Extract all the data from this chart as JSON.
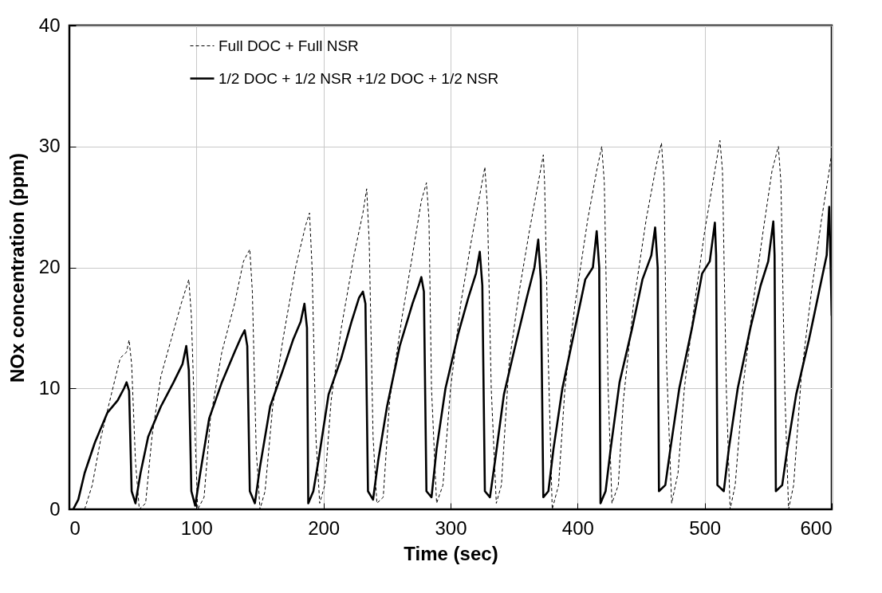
{
  "chart_data": {
    "type": "line",
    "xlabel": "Time (sec)",
    "ylabel": "NOx concentration (ppm)",
    "xlim": [
      0,
      600
    ],
    "xticks": [
      0,
      100,
      200,
      300,
      400,
      500,
      600
    ],
    "ylim": [
      0,
      40
    ],
    "yticks": [
      0,
      10,
      20,
      30,
      40
    ],
    "grid": true,
    "legend": "top left",
    "series": [
      {
        "name": "Full  DOC + Full NSR",
        "color": "#000000",
        "line_style": "dashed",
        "x": [
          12,
          18,
          25,
          33,
          40,
          45,
          47,
          49,
          52,
          55,
          60,
          65,
          72,
          80,
          88,
          94,
          96,
          99,
          101,
          106,
          111,
          120,
          130,
          137,
          142,
          144,
          147,
          150,
          154,
          160,
          168,
          178,
          186,
          189,
          191,
          194,
          197,
          201,
          206,
          214,
          224,
          231,
          234,
          236,
          239,
          242,
          247,
          252,
          262,
          270,
          277,
          281,
          283,
          285,
          289,
          294,
          300,
          308,
          316,
          323,
          327,
          329,
          332,
          336,
          340,
          346,
          354,
          362,
          369,
          373,
          374,
          377,
          380,
          385,
          390,
          398,
          408,
          415,
          419,
          421,
          424,
          427,
          432,
          436,
          444,
          454,
          462,
          466,
          468,
          470,
          474,
          479,
          484,
          492,
          500,
          508,
          512,
          514,
          517,
          520,
          524,
          530,
          538,
          546,
          553,
          558,
          560,
          563,
          566,
          570,
          576,
          584,
          592,
          598,
          600
        ],
        "values": [
          0,
          2,
          6,
          9.5,
          12.5,
          13,
          14,
          12,
          4,
          0,
          0.5,
          6,
          11,
          14,
          17,
          19,
          16,
          6,
          0,
          1,
          7.5,
          13,
          17,
          20.5,
          21.5,
          18,
          5,
          0,
          1.5,
          8.5,
          14,
          20,
          23.5,
          24.5,
          20,
          6,
          0.5,
          2,
          9,
          15,
          21,
          24.5,
          26.5,
          22,
          6,
          0.5,
          1,
          9,
          16,
          21,
          25.5,
          27,
          24,
          10,
          0.5,
          2,
          10,
          17,
          22,
          26,
          28.3,
          25,
          10,
          0.5,
          2,
          12,
          18,
          23,
          27,
          29.3,
          27,
          12,
          0,
          2,
          10,
          17,
          24,
          28,
          30,
          27,
          10,
          0.5,
          2,
          9,
          17,
          24,
          28.5,
          30.3,
          27,
          12,
          0.5,
          3,
          10,
          17,
          23,
          28,
          30.5,
          28,
          10,
          0,
          2,
          10,
          17,
          23,
          28,
          30,
          27,
          10,
          0,
          2,
          11,
          18,
          24,
          28,
          29.5
        ]
      },
      {
        "name": "1/2 DOC + 1/2 NSR +1/2 DOC + 1/2 NSR",
        "color": "#000000",
        "line_style": "solid",
        "x": [
          3,
          7,
          12,
          20,
          30,
          38,
          43,
          45,
          47,
          49,
          52,
          56,
          62,
          72,
          82,
          89,
          92,
          94,
          96,
          99,
          103,
          110,
          120,
          130,
          135,
          138,
          140,
          142,
          146,
          150,
          158,
          168,
          176,
          182,
          185,
          187,
          188,
          192,
          196,
          204,
          214,
          222,
          228,
          231,
          233,
          235,
          239,
          243,
          250,
          260,
          270,
          275,
          277,
          279,
          281,
          285,
          289,
          296,
          306,
          314,
          320,
          323,
          325,
          327,
          331,
          335,
          342,
          352,
          360,
          366,
          369,
          371,
          373,
          377,
          381,
          388,
          398,
          406,
          412,
          415,
          417,
          418,
          422,
          426,
          433,
          443,
          451,
          458,
          461,
          463,
          464,
          469,
          473,
          480,
          490,
          498,
          504,
          508,
          509,
          510,
          515,
          519,
          526,
          536,
          544,
          550,
          554,
          555,
          556,
          561,
          565,
          572,
          582,
          590,
          596,
          598,
          600
        ],
        "values": [
          0,
          0.8,
          3,
          5.5,
          8,
          9,
          10,
          10.5,
          9.8,
          1.5,
          0.5,
          3,
          6,
          8.5,
          10.5,
          12,
          13.5,
          11.5,
          1.5,
          0.3,
          3,
          7.5,
          10.5,
          13,
          14.2,
          14.8,
          13.5,
          1.5,
          0.5,
          3.5,
          8.5,
          11.5,
          14,
          15.5,
          17,
          15,
          0.5,
          1.5,
          4,
          9.5,
          12.5,
          15.5,
          17.5,
          18,
          17,
          1.5,
          0.8,
          4,
          8.5,
          13.5,
          17,
          18.5,
          19.2,
          18,
          1.5,
          1,
          5,
          10,
          14.5,
          17.5,
          19.5,
          21.3,
          18.5,
          1.5,
          1,
          4,
          9.5,
          14,
          17.5,
          20,
          22.3,
          19,
          1,
          1.5,
          5,
          10,
          15,
          19,
          20,
          23,
          20,
          0.5,
          1.5,
          5,
          10.5,
          15,
          19,
          21,
          23.3,
          20,
          1.5,
          2,
          5,
          10,
          15,
          19.5,
          20.5,
          23.7,
          21,
          2,
          1.5,
          5,
          10,
          15,
          18.5,
          20.5,
          23.8,
          21,
          1.5,
          2,
          5,
          9.5,
          14,
          18,
          21,
          25,
          16
        ]
      }
    ]
  }
}
